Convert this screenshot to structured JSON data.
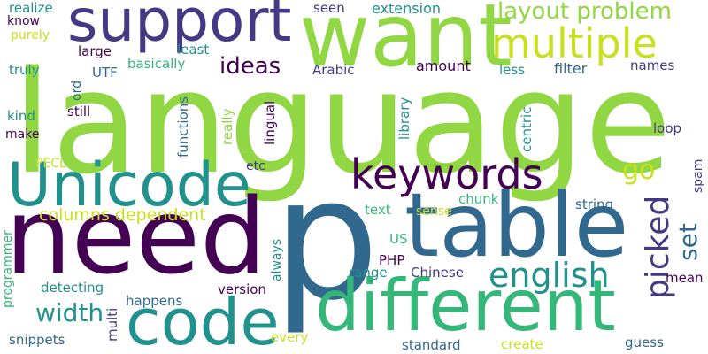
{
  "palette": {
    "lime": "#90d743",
    "purple": "#440154",
    "indigo": "#443983",
    "blue": "#31688e",
    "teal": "#21918c",
    "green": "#35b779",
    "yellow": "#c8e020"
  },
  "words": {
    "language": "language",
    "p": "p",
    "need": "need",
    "table": "table",
    "different": "different",
    "want": "want",
    "support": "support",
    "Unicode": "Unicode",
    "code": "code",
    "multiple": "multiple",
    "keywords": "keywords",
    "english": "english",
    "picked": "picked",
    "layout_problem": "layout problem",
    "width": "width",
    "ideas": "ideas",
    "go": "go",
    "set": "set",
    "columns_dependent": "columns dependent",
    "realize": "realize",
    "seen": "seen",
    "extension": "extension",
    "know": "know",
    "purely": "purely",
    "large": "large",
    "least": "least",
    "truly": "truly",
    "UTF": "UTF",
    "basically": "basically",
    "Arabic": "Arabic",
    "amount": "amount",
    "less": "less",
    "filter": "filter",
    "names": "names",
    "ord": "ord",
    "kind": "kind",
    "still": "still",
    "make": "make",
    "functions": "functions",
    "really": "really",
    "lingual": "lingual",
    "library": "library",
    "centric": "centric",
    "loop": "loop",
    "PECL": "PECL",
    "etc": "etc",
    "spam": "spam",
    "chunk": "chunk",
    "string": "string",
    "text": "text",
    "sense": "sense",
    "US": "US",
    "programmer": "programmer",
    "always": "always",
    "PHP": "PHP",
    "range": "range",
    "Chinese": "Chinese",
    "detecting": "detecting",
    "version": "version",
    "mean": "mean",
    "happens": "happens",
    "multi": "multi",
    "snippets": "snippets",
    "every": "every",
    "standard": "standard",
    "create": "create",
    "guess": "guess"
  }
}
